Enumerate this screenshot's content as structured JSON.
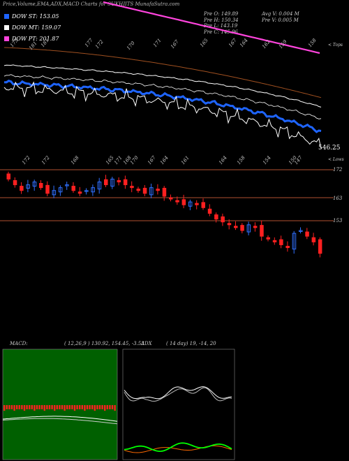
{
  "header": {
    "title": "Price,Volume,EMA,ADX,MACD Charts for SUKHJITS MunafaSutra.com"
  },
  "legend": [
    {
      "label": "DOW ST: 153.05",
      "color": "#1e64ff"
    },
    {
      "label": "DOW MT: 159.07",
      "color": "#ffffff"
    },
    {
      "label": "DOW PT: 201.87",
      "color": "#ff44dd"
    }
  ],
  "ohlc": {
    "open": "Pre  O: 149.89",
    "high": "Pre  H: 150.34",
    "low": "Pre  L: 143.19",
    "close": "Pre  C: 145.96",
    "avg_vol": "Avg V: 0.004  M",
    "vol": "Pre  V: 0.005 M"
  },
  "top_chart": {
    "top_caption": "< Tops",
    "low_caption": "< Lows",
    "last_value": "546.25",
    "top_labels": [
      "175",
      "181",
      "181",
      "177",
      "172",
      "170",
      "171",
      "167",
      "165",
      "167",
      "164",
      "162",
      "159",
      "158"
    ],
    "low_labels": [
      "172",
      "172",
      "168",
      "165",
      "171",
      "168",
      "170",
      "167",
      "164",
      "161",
      "164",
      "158",
      "154",
      "150",
      "147"
    ]
  },
  "candle_chart": {
    "levels": [
      "172",
      "163",
      "153"
    ],
    "colors": {
      "up": "#3070ff",
      "down": "#ff2020",
      "level": "#b05030"
    }
  },
  "macd": {
    "label": "MACD:",
    "values": "( 12,26,9 ) 130.92,  154.45,  -3.53",
    "colors": {
      "hist": "#ff2020",
      "panel_bg": "#006000"
    }
  },
  "adx": {
    "label": "ADX",
    "values": "( 14  day) 19,  -14,  20",
    "colors": {
      "adx": "#ffffff",
      "plus_di": "#00ff00",
      "minus_di": "#ff6a00"
    }
  },
  "chart_data": {
    "type": "line",
    "title": "Price,Volume,EMA,ADX,MACD Charts for SUKHJITS MunafaSutra.com",
    "series": [
      {
        "name": "DOW ST",
        "last": 153.05
      },
      {
        "name": "DOW MT",
        "last": 159.07
      },
      {
        "name": "DOW PT",
        "last": 201.87
      }
    ],
    "closes": [
      172,
      170,
      168,
      170,
      171,
      169,
      167,
      168,
      169,
      170,
      168,
      167,
      168,
      169,
      171,
      170,
      172,
      171,
      170,
      169,
      168,
      167,
      169,
      168,
      166,
      165,
      164,
      163,
      164,
      163,
      162,
      160,
      158,
      157,
      156,
      155,
      154,
      156,
      155,
      152,
      151,
      150,
      149,
      148,
      153,
      154,
      152,
      150,
      146
    ],
    "ohlc_last": {
      "open": 149.89,
      "high": 150.34,
      "low": 143.19,
      "close": 145.96
    },
    "volume": {
      "avg_M": 0.004,
      "last_M": 0.005
    },
    "macd": {
      "fast": 12,
      "slow": 26,
      "signal": 9,
      "values": [
        130.92,
        154.45,
        -3.53
      ]
    },
    "adx": {
      "period": 14,
      "values": [
        19,
        -14,
        20
      ]
    }
  }
}
